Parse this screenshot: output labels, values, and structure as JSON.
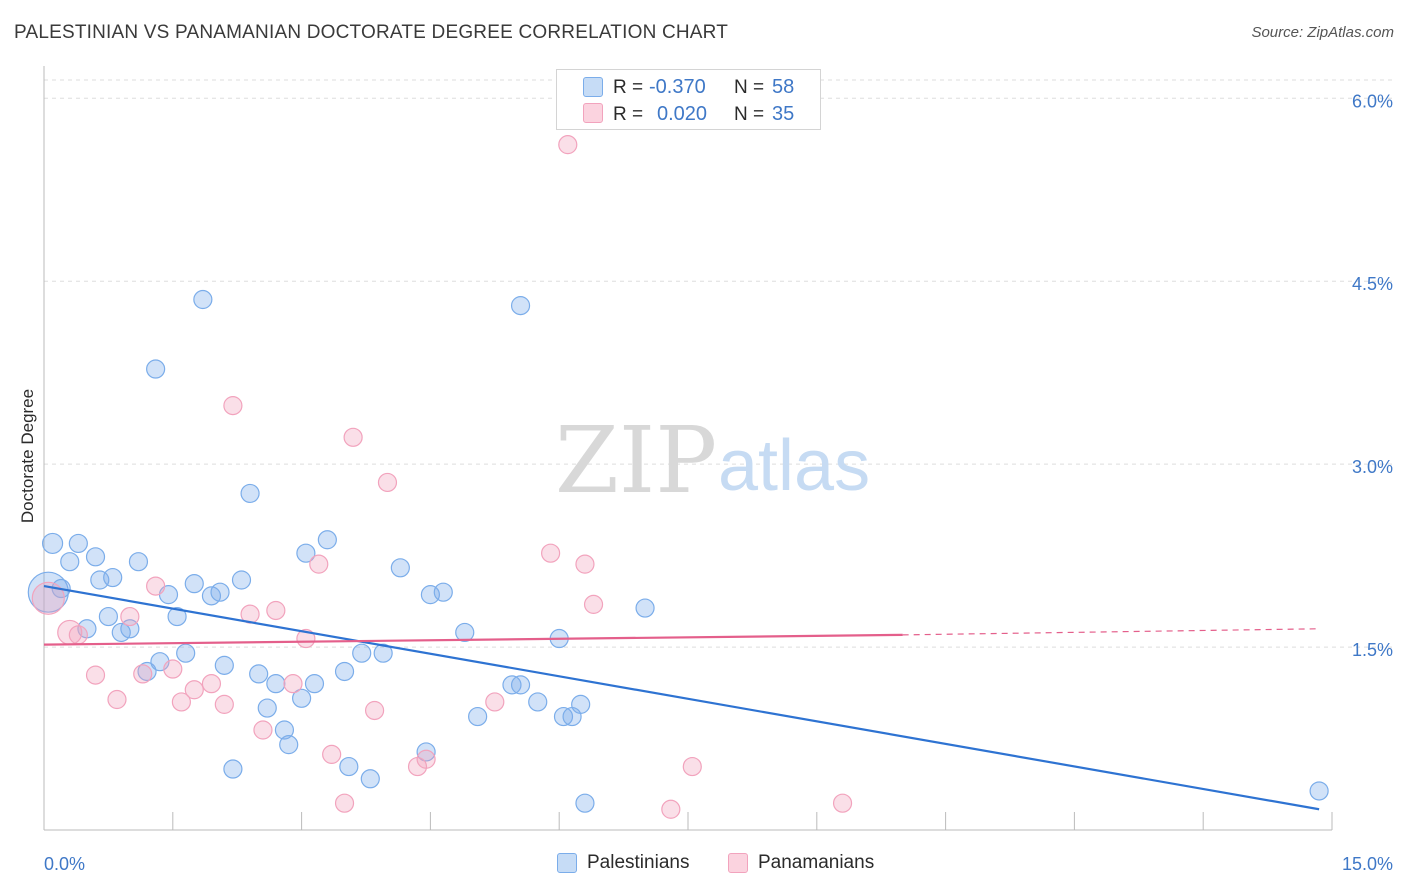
{
  "title": "PALESTINIAN VS PANAMANIAN DOCTORATE DEGREE CORRELATION CHART",
  "source": "Source: ZipAtlas.com",
  "watermark": {
    "zip": "ZIP",
    "atlas": "atlas"
  },
  "colors": {
    "blue": "#7badea",
    "blue_line": "#2e73d2",
    "pink": "#f2a3bd",
    "pink_line": "#e45f8b",
    "tick_text": "#3f78c7",
    "grid": "#dddddd"
  },
  "legend": {
    "rows": [
      {
        "r_label": "R =",
        "r_value": "-0.370",
        "n_label": "N =",
        "n_value": "58"
      },
      {
        "r_label": "R =",
        "r_value": "0.020",
        "n_label": "N =",
        "n_value": "35"
      }
    ]
  },
  "bottom_legend": [
    "Palestinians",
    "Panamanians"
  ],
  "chart_data": {
    "type": "scatter",
    "title": "PALESTINIAN VS PANAMANIAN DOCTORATE DEGREE CORRELATION CHART",
    "xlabel": "",
    "ylabel": "Doctorate Degree",
    "xlim": [
      0,
      15
    ],
    "ylim": [
      0,
      6.15
    ],
    "x_tick_labels": [
      "0.0%",
      "15.0%"
    ],
    "y_ticks": [
      1.5,
      3.0,
      4.5,
      6.0
    ],
    "y_tick_labels": [
      "1.5%",
      "3.0%",
      "4.5%",
      "6.0%"
    ],
    "series": [
      {
        "name": "Palestinians",
        "r": -0.37,
        "n": 58,
        "trend": {
          "x0": 0.0,
          "y0": 2.0,
          "x1": 14.85,
          "y1": 0.17
        },
        "points": [
          [
            0.05,
            1.95,
            20
          ],
          [
            0.1,
            2.35,
            10
          ],
          [
            0.2,
            1.98,
            9
          ],
          [
            0.3,
            2.2,
            9
          ],
          [
            0.4,
            2.35,
            9
          ],
          [
            0.5,
            1.65,
            9
          ],
          [
            0.6,
            2.24,
            9
          ],
          [
            0.65,
            2.05,
            9
          ],
          [
            0.75,
            1.75,
            9
          ],
          [
            0.8,
            2.07,
            9
          ],
          [
            0.9,
            1.62,
            9
          ],
          [
            1.0,
            1.65,
            9
          ],
          [
            1.1,
            2.2,
            9
          ],
          [
            1.2,
            1.3,
            9
          ],
          [
            1.3,
            3.78,
            9
          ],
          [
            1.35,
            1.38,
            9
          ],
          [
            1.45,
            1.93,
            9
          ],
          [
            1.55,
            1.75,
            9
          ],
          [
            1.65,
            1.45,
            9
          ],
          [
            1.75,
            2.02,
            9
          ],
          [
            1.85,
            4.35,
            9
          ],
          [
            1.95,
            1.92,
            9
          ],
          [
            2.05,
            1.95,
            9
          ],
          [
            2.1,
            1.35,
            9
          ],
          [
            2.2,
            0.5,
            9
          ],
          [
            2.3,
            2.05,
            9
          ],
          [
            2.4,
            2.76,
            9
          ],
          [
            2.5,
            1.28,
            9
          ],
          [
            2.6,
            1.0,
            9
          ],
          [
            2.7,
            1.2,
            9
          ],
          [
            2.8,
            0.82,
            9
          ],
          [
            2.85,
            0.7,
            9
          ],
          [
            3.0,
            1.08,
            9
          ],
          [
            3.05,
            2.27,
            9
          ],
          [
            3.15,
            1.2,
            9
          ],
          [
            3.3,
            2.38,
            9
          ],
          [
            3.5,
            1.3,
            9
          ],
          [
            3.55,
            0.52,
            9
          ],
          [
            3.7,
            1.45,
            9
          ],
          [
            3.8,
            0.42,
            9
          ],
          [
            3.95,
            1.45,
            9
          ],
          [
            4.15,
            2.15,
            9
          ],
          [
            4.45,
            0.64,
            9
          ],
          [
            4.5,
            1.93,
            9
          ],
          [
            4.65,
            1.95,
            9
          ],
          [
            4.9,
            1.62,
            9
          ],
          [
            5.05,
            0.93,
            9
          ],
          [
            5.45,
            1.19,
            9
          ],
          [
            5.55,
            1.19,
            9
          ],
          [
            5.55,
            4.3,
            9
          ],
          [
            5.75,
            1.05,
            9
          ],
          [
            6.0,
            1.57,
            9
          ],
          [
            6.05,
            0.93,
            9
          ],
          [
            6.15,
            0.93,
            9
          ],
          [
            6.25,
            1.03,
            9
          ],
          [
            6.3,
            0.22,
            9
          ],
          [
            7.0,
            1.82,
            9
          ],
          [
            14.85,
            0.32,
            9
          ]
        ]
      },
      {
        "name": "Panamanians",
        "r": 0.02,
        "n": 35,
        "trend": {
          "x0": 0.0,
          "y0": 1.52,
          "x1": 10.0,
          "y1": 1.6
        },
        "trend_extension": {
          "x0": 10.0,
          "y0": 1.6,
          "x1": 14.85,
          "y1": 1.65
        },
        "points": [
          [
            0.05,
            1.9,
            16
          ],
          [
            0.3,
            1.62,
            12
          ],
          [
            0.4,
            1.6,
            9
          ],
          [
            0.6,
            1.27,
            9
          ],
          [
            0.85,
            1.07,
            9
          ],
          [
            1.0,
            1.75,
            9
          ],
          [
            1.15,
            1.28,
            9
          ],
          [
            1.3,
            2.0,
            9
          ],
          [
            1.5,
            1.32,
            9
          ],
          [
            1.6,
            1.05,
            9
          ],
          [
            1.75,
            1.15,
            9
          ],
          [
            1.95,
            1.2,
            9
          ],
          [
            2.1,
            1.03,
            9
          ],
          [
            2.2,
            3.48,
            9
          ],
          [
            2.4,
            1.77,
            9
          ],
          [
            2.55,
            0.82,
            9
          ],
          [
            2.7,
            1.8,
            9
          ],
          [
            2.9,
            1.2,
            9
          ],
          [
            3.05,
            1.57,
            9
          ],
          [
            3.2,
            2.18,
            9
          ],
          [
            3.35,
            0.62,
            9
          ],
          [
            3.5,
            0.22,
            9
          ],
          [
            3.6,
            3.22,
            9
          ],
          [
            3.85,
            0.98,
            9
          ],
          [
            4.0,
            2.85,
            9
          ],
          [
            4.35,
            0.52,
            9
          ],
          [
            4.45,
            0.58,
            9
          ],
          [
            5.25,
            1.05,
            9
          ],
          [
            5.9,
            2.27,
            9
          ],
          [
            6.1,
            5.62,
            9
          ],
          [
            6.3,
            2.18,
            9
          ],
          [
            6.4,
            1.85,
            9
          ],
          [
            7.3,
            0.17,
            9
          ],
          [
            7.55,
            0.52,
            9
          ],
          [
            9.3,
            0.22,
            9
          ]
        ]
      }
    ]
  }
}
